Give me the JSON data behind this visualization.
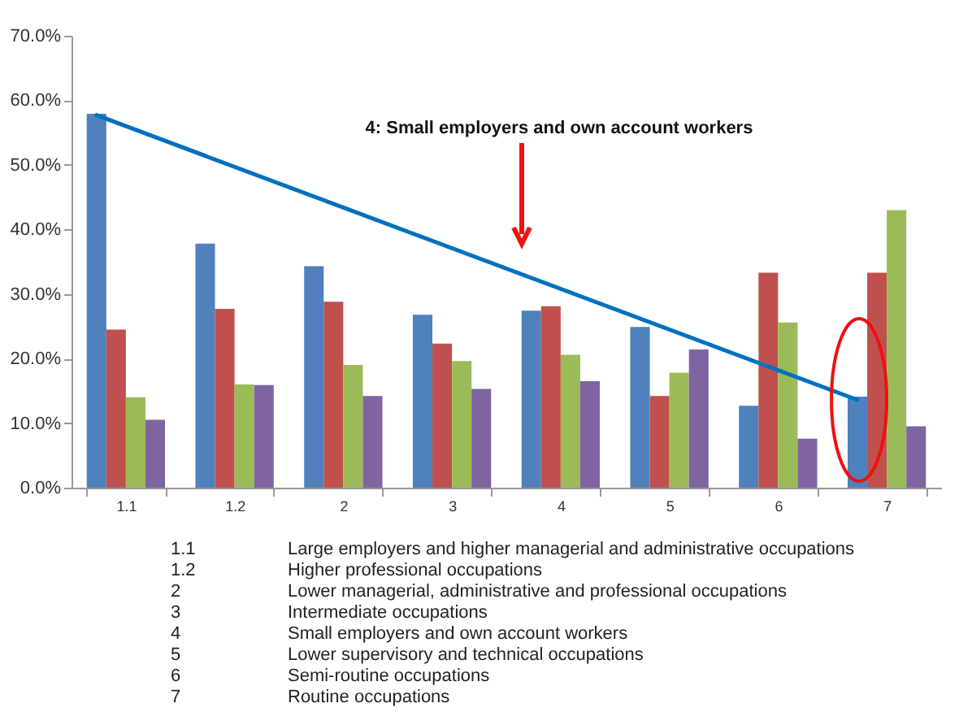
{
  "chart_data": {
    "type": "bar",
    "categories": [
      "1.1",
      "1.2",
      "2",
      "3",
      "4",
      "5",
      "6",
      "7"
    ],
    "series": [
      {
        "color": "#4f81bd",
        "values": [
          57.9,
          37.8,
          34.3,
          26.8,
          27.4,
          24.9,
          12.7,
          14.1
        ]
      },
      {
        "color": "#c0504d",
        "values": [
          24.5,
          27.7,
          28.8,
          22.3,
          28.1,
          14.2,
          33.3,
          33.3
        ]
      },
      {
        "color": "#9bbb59",
        "values": [
          14.0,
          16.0,
          19.0,
          19.6,
          20.6,
          17.8,
          25.6,
          43.0
        ]
      },
      {
        "color": "#8064a2",
        "values": [
          10.5,
          15.9,
          14.2,
          15.3,
          16.5,
          21.4,
          7.6,
          9.5
        ]
      },
      {
        "type": "line",
        "color": "#0070c0",
        "x": [
          "1.1",
          "7"
        ],
        "values": [
          57.7,
          13.6
        ]
      }
    ],
    "ylim": [
      0,
      70
    ],
    "yticks": [
      {
        "value": 0,
        "label": "0.0%"
      },
      {
        "value": 10,
        "label": "10.0%"
      },
      {
        "value": 20,
        "label": "20.0%"
      },
      {
        "value": 30,
        "label": "30.0%"
      },
      {
        "value": 40,
        "label": "40.0%"
      },
      {
        "value": 50,
        "label": "50.0%"
      },
      {
        "value": 60,
        "label": "60.0%"
      },
      {
        "value": 70,
        "label": "70.0%"
      }
    ],
    "grid": false,
    "legend": false,
    "annotations": [
      "4: Small employers and own account workers",
      "1.1 Large employers and higher managerial and administrative occupations",
      "1.2 Higher professional occupations",
      "2 Lower managerial, administrative and professional occupations",
      "3 Intermediate occupations",
      "4 Small employers and own account workers",
      "5 Lower supervisory and technical occupations",
      "6 Semi-routine occupations",
      "7 Routine occupations"
    ]
  }
}
